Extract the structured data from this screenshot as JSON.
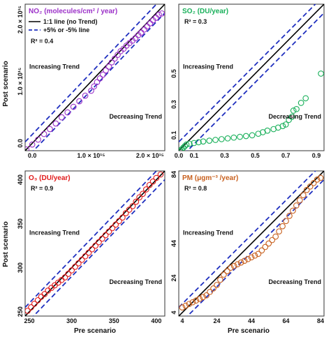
{
  "axis_titles": {
    "x": "Pre scenario",
    "y": "Post scenario"
  },
  "legend": {
    "one_to_one": "1:1 line (no Trend)",
    "five_pct": "+5% or -5% line"
  },
  "chart_data": [
    {
      "type": "scatter",
      "title": "NO₂ (molecules/cm² / year)",
      "color": "#9b30c8",
      "r2": "R² = 0.4",
      "trend_up": "Increasing Trend",
      "trend_down": "Decreasing Trend",
      "xlim": [
        -0.12,
        2.25
      ],
      "ylim": [
        -0.12,
        2.25
      ],
      "x_ticks": [
        0.0,
        1.0,
        2.0
      ],
      "x_tick_labels": [
        "0.0",
        "1.0 × 10¹⁵",
        "2.0 × 10¹⁵"
      ],
      "y_ticks": [
        0.0,
        1.0,
        2.0
      ],
      "y_tick_labels": [
        "0.0",
        "1.0 × 10¹⁵",
        "2.0 × 10¹⁵"
      ],
      "points": [
        [
          -0.1,
          -0.1
        ],
        [
          0.0,
          -0.02
        ],
        [
          0.1,
          0.06
        ],
        [
          0.2,
          0.15
        ],
        [
          0.3,
          0.23
        ],
        [
          0.4,
          0.32
        ],
        [
          0.5,
          0.42
        ],
        [
          0.6,
          0.5
        ],
        [
          0.7,
          0.59
        ],
        [
          0.8,
          0.68
        ],
        [
          0.9,
          0.77
        ],
        [
          1.0,
          0.85
        ],
        [
          1.05,
          0.92
        ],
        [
          1.1,
          0.99
        ],
        [
          1.15,
          1.05
        ],
        [
          1.2,
          1.11
        ],
        [
          1.25,
          1.18
        ],
        [
          1.3,
          1.24
        ],
        [
          1.35,
          1.31
        ],
        [
          1.4,
          1.37
        ],
        [
          1.45,
          1.43
        ],
        [
          1.5,
          1.49
        ],
        [
          1.55,
          1.53
        ],
        [
          1.6,
          1.58
        ],
        [
          1.65,
          1.62
        ],
        [
          1.7,
          1.66
        ],
        [
          1.75,
          1.7
        ],
        [
          1.8,
          1.75
        ],
        [
          1.85,
          1.79
        ],
        [
          1.9,
          1.84
        ],
        [
          1.95,
          1.89
        ],
        [
          2.0,
          1.94
        ],
        [
          2.05,
          1.99
        ],
        [
          2.1,
          2.03
        ],
        [
          2.15,
          2.08
        ],
        [
          2.2,
          2.1
        ]
      ]
    },
    {
      "type": "scatter",
      "title": "SO₂ (DU/year)",
      "color": "#19b05a",
      "r2": "R² = 0.3",
      "trend_up": "Increasing Trend",
      "trend_down": "Decreasing Trend",
      "xlim": [
        0.0,
        0.95
      ],
      "ylim": [
        0.0,
        0.95
      ],
      "x_ticks": [
        0.0,
        0.1,
        0.3,
        0.5,
        0.7,
        0.9
      ],
      "x_tick_labels": [
        "0.0",
        "0.1",
        "0.3",
        "0.5",
        "0.7",
        "0.9"
      ],
      "y_ticks": [
        0.1,
        0.3,
        0.5
      ],
      "y_tick_labels": [
        "0.1",
        "0.3",
        "0.5"
      ],
      "points": [
        [
          0.01,
          0.0
        ],
        [
          0.02,
          0.01
        ],
        [
          0.03,
          0.02
        ],
        [
          0.04,
          0.03
        ],
        [
          0.05,
          0.04
        ],
        [
          0.07,
          0.045
        ],
        [
          0.1,
          0.05
        ],
        [
          0.13,
          0.055
        ],
        [
          0.16,
          0.06
        ],
        [
          0.2,
          0.065
        ],
        [
          0.24,
          0.07
        ],
        [
          0.28,
          0.075
        ],
        [
          0.32,
          0.08
        ],
        [
          0.36,
          0.085
        ],
        [
          0.4,
          0.09
        ],
        [
          0.44,
          0.095
        ],
        [
          0.48,
          0.1
        ],
        [
          0.52,
          0.11
        ],
        [
          0.55,
          0.12
        ],
        [
          0.58,
          0.13
        ],
        [
          0.62,
          0.14
        ],
        [
          0.65,
          0.15
        ],
        [
          0.68,
          0.16
        ],
        [
          0.7,
          0.17
        ],
        [
          0.72,
          0.2
        ],
        [
          0.74,
          0.22
        ],
        [
          0.75,
          0.26
        ],
        [
          0.77,
          0.27
        ],
        [
          0.8,
          0.31
        ],
        [
          0.83,
          0.34
        ],
        [
          0.93,
          0.5
        ]
      ]
    },
    {
      "type": "scatter",
      "title": "O₃ (DU/year)",
      "color": "#e01a1a",
      "r2": "R² = 0.9",
      "trend_up": "Increasing Trend",
      "trend_down": "Decreasing Trend",
      "xlim": [
        245,
        410
      ],
      "ylim": [
        245,
        410
      ],
      "x_ticks": [
        250,
        300,
        350,
        400
      ],
      "x_tick_labels": [
        "250",
        "300",
        "350",
        "400"
      ],
      "y_ticks": [
        250,
        300,
        350,
        400
      ],
      "y_tick_labels": [
        "250",
        "300",
        "350",
        "400"
      ],
      "points": [
        [
          248,
          251
        ],
        [
          252,
          255
        ],
        [
          256,
          259
        ],
        [
          260,
          263
        ],
        [
          264,
          267
        ],
        [
          268,
          270
        ],
        [
          272,
          274
        ],
        [
          276,
          277
        ],
        [
          280,
          280
        ],
        [
          284,
          283
        ],
        [
          288,
          286
        ],
        [
          292,
          289
        ],
        [
          296,
          293
        ],
        [
          300,
          297
        ],
        [
          304,
          301
        ],
        [
          308,
          305
        ],
        [
          312,
          309
        ],
        [
          316,
          313
        ],
        [
          320,
          317
        ],
        [
          324,
          321
        ],
        [
          328,
          325
        ],
        [
          332,
          329
        ],
        [
          336,
          333
        ],
        [
          340,
          337
        ],
        [
          344,
          341
        ],
        [
          348,
          345
        ],
        [
          352,
          349
        ],
        [
          356,
          353
        ],
        [
          360,
          357
        ],
        [
          364,
          362
        ],
        [
          368,
          366
        ],
        [
          372,
          370
        ],
        [
          376,
          375
        ],
        [
          380,
          380
        ],
        [
          384,
          384
        ],
        [
          388,
          389
        ],
        [
          392,
          394
        ],
        [
          396,
          398
        ],
        [
          400,
          402
        ],
        [
          405,
          406
        ]
      ]
    },
    {
      "type": "scatter",
      "title": "PM (μgm⁻³ /year)",
      "color": "#c8601e",
      "r2": "R² = 0.8",
      "trend_up": "Increasing Trend",
      "trend_down": "Decreasing Trend",
      "xlim": [
        2,
        86
      ],
      "ylim": [
        2,
        86
      ],
      "x_ticks": [
        4,
        24,
        44,
        64,
        84
      ],
      "x_tick_labels": [
        "4",
        "24",
        "44",
        "64",
        "84"
      ],
      "y_ticks": [
        4,
        24,
        44,
        84
      ],
      "y_tick_labels": [
        "4",
        "24",
        "44",
        "84"
      ],
      "points": [
        [
          4,
          7
        ],
        [
          6,
          8
        ],
        [
          8,
          9
        ],
        [
          10,
          10
        ],
        [
          12,
          11
        ],
        [
          14,
          12
        ],
        [
          16,
          13
        ],
        [
          18,
          14
        ],
        [
          20,
          16
        ],
        [
          22,
          18
        ],
        [
          24,
          20
        ],
        [
          26,
          23
        ],
        [
          28,
          26
        ],
        [
          30,
          28
        ],
        [
          32,
          30
        ],
        [
          34,
          31
        ],
        [
          36,
          32
        ],
        [
          38,
          33
        ],
        [
          40,
          34
        ],
        [
          42,
          35
        ],
        [
          44,
          36
        ],
        [
          46,
          37
        ],
        [
          48,
          38
        ],
        [
          50,
          40
        ],
        [
          52,
          42
        ],
        [
          54,
          44
        ],
        [
          56,
          46
        ],
        [
          58,
          48
        ],
        [
          60,
          51
        ],
        [
          62,
          54
        ],
        [
          64,
          57
        ],
        [
          66,
          60
        ],
        [
          68,
          63
        ],
        [
          70,
          66
        ],
        [
          72,
          69
        ],
        [
          74,
          72
        ],
        [
          76,
          75
        ],
        [
          78,
          77
        ],
        [
          80,
          79
        ],
        [
          82,
          81
        ],
        [
          84,
          82
        ]
      ]
    }
  ]
}
